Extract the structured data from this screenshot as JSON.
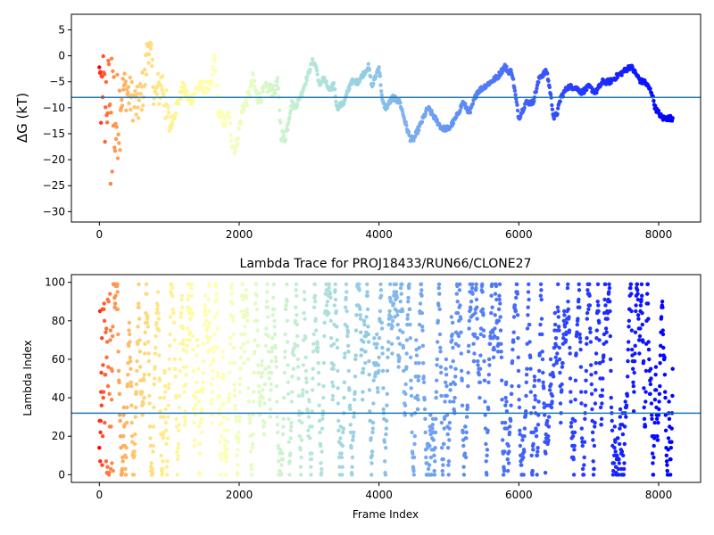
{
  "chart_data": [
    {
      "type": "scatter",
      "title": "",
      "xlabel": "",
      "ylabel": "ΔG (kT)",
      "xlim": [
        -400,
        8600
      ],
      "ylim": [
        -32,
        8
      ],
      "xticks": [
        0,
        2000,
        4000,
        6000,
        8000
      ],
      "yticks": [
        -30,
        -25,
        -20,
        -15,
        -10,
        -5,
        0,
        5
      ],
      "colormap": "rainbow (red at start → violet at end)",
      "reference_line": {
        "y": -8,
        "color": "#1f77b4"
      },
      "n_frames": 8200,
      "trace_keypoints": {
        "x": [
          0,
          60,
          150,
          250,
          350,
          450,
          550,
          650,
          700,
          800,
          900,
          1000,
          1100,
          1200,
          1300,
          1400,
          1500,
          1600,
          1650,
          1700,
          1800,
          1850,
          1900,
          1950,
          2000,
          2050,
          2100,
          2150,
          2200,
          2250,
          2300,
          2400,
          2500,
          2550,
          2600,
          2650,
          2700,
          2750,
          2800,
          2900,
          3000,
          3050,
          3100,
          3150,
          3200,
          3300,
          3350,
          3400,
          3500,
          3600,
          3700,
          3800,
          3850,
          3900,
          4000,
          4050,
          4100,
          4200,
          4300,
          4400,
          4450,
          4500,
          4600,
          4700,
          4800,
          4900,
          5000,
          5100,
          5200,
          5300,
          5400,
          5500,
          5600,
          5700,
          5800,
          5850,
          5900,
          6000,
          6100,
          6200,
          6300,
          6400,
          6450,
          6500,
          6550,
          6600,
          6700,
          6800,
          6900,
          7000,
          7100,
          7200,
          7300,
          7400,
          7500,
          7600,
          7700,
          7750,
          7800,
          7900,
          7950,
          8000,
          8050,
          8100,
          8150
        ],
        "y": [
          -5,
          -10,
          -8,
          -12,
          -6,
          -8,
          -10,
          -5,
          3,
          -8,
          -5,
          -14,
          -10,
          -6,
          -9,
          -6,
          -6,
          -6,
          0,
          -11,
          -13,
          -11,
          -17,
          -18,
          -14,
          -10,
          -9,
          -7,
          -4,
          -8,
          -8,
          -6,
          -7,
          -5,
          -15,
          -16,
          -13,
          -9,
          -10,
          -7,
          -3,
          -1,
          -2,
          -6,
          -4,
          -7,
          -5,
          -10,
          -9,
          -5,
          -5,
          -3,
          -2,
          -6,
          -2,
          -9,
          -10,
          -8,
          -9,
          -14,
          -16,
          -16,
          -13,
          -10,
          -12,
          -14,
          -14,
          -12,
          -9,
          -11,
          -7,
          -6,
          -5,
          -4,
          -2,
          -3,
          -3,
          -12,
          -9,
          -9,
          -4,
          -3,
          -7,
          -12,
          -11,
          -8,
          -6,
          -6,
          -7,
          -6,
          -7,
          -5,
          -5,
          -4,
          -3,
          -2,
          -4,
          -5,
          -5,
          -7,
          -10,
          -11,
          -12,
          -12,
          -12
        ]
      }
    },
    {
      "type": "scatter",
      "title": "Lambda Trace for PROJ18433/RUN66/CLONE27",
      "xlabel": "Frame Index",
      "ylabel": "Lambda Index",
      "xlim": [
        -400,
        8600
      ],
      "ylim": [
        -4,
        104
      ],
      "xticks": [
        0,
        2000,
        4000,
        6000,
        8000
      ],
      "yticks": [
        0,
        20,
        40,
        60,
        80,
        100
      ],
      "colormap": "rainbow (red at start → violet at end)",
      "reference_line": {
        "y": 32,
        "color": "#1f77b4"
      },
      "n_frames": 8200,
      "lambda_range": [
        0,
        99
      ]
    }
  ]
}
